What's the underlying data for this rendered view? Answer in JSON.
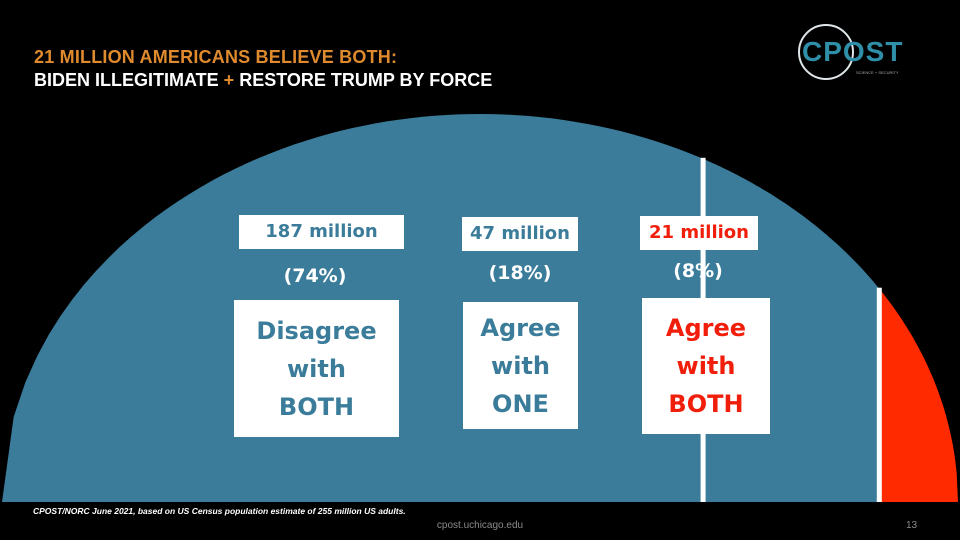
{
  "title": {
    "line1": "21 MILLION AMERICANS BELIEVE BOTH:",
    "line2_a": "BIDEN ILLEGITIMATE ",
    "line2_plus": "+",
    "line2_b": " RESTORE TRUMP BY FORCE"
  },
  "logo": {
    "text": "CPOST",
    "subtitle": "SCIENCE + SECURITY"
  },
  "colors": {
    "disagree_both": "#3a7c9a",
    "agree_one": "#3a7c9a",
    "agree_both": "#ff2a00",
    "divider": "#ffffff",
    "title_accent": "#e08a2e"
  },
  "chart_data": {
    "type": "pie",
    "variant": "half-donut-slices",
    "unit": "million US adults",
    "total": 255,
    "slices": [
      {
        "count_label": "187 million",
        "percent_label": "(74%)",
        "label": "Disagree\nwith\nBOTH",
        "value": 187,
        "percent": 74,
        "color": "#3a7c9a"
      },
      {
        "count_label": "47 million",
        "percent_label": "(18%)",
        "label": "Agree\nwith\nONE",
        "value": 47,
        "percent": 18,
        "color": "#3a7c9a"
      },
      {
        "count_label": "21 million",
        "percent_label": "(8%)",
        "label": "Agree\nwith\nBOTH",
        "value": 21,
        "percent": 8,
        "color": "#ff2a00"
      }
    ]
  },
  "footnote": "CPOST/NORC June 2021, based on US Census population estimate of 255 million US adults.",
  "url": "cpost.uchicago.edu",
  "page_number": "13"
}
